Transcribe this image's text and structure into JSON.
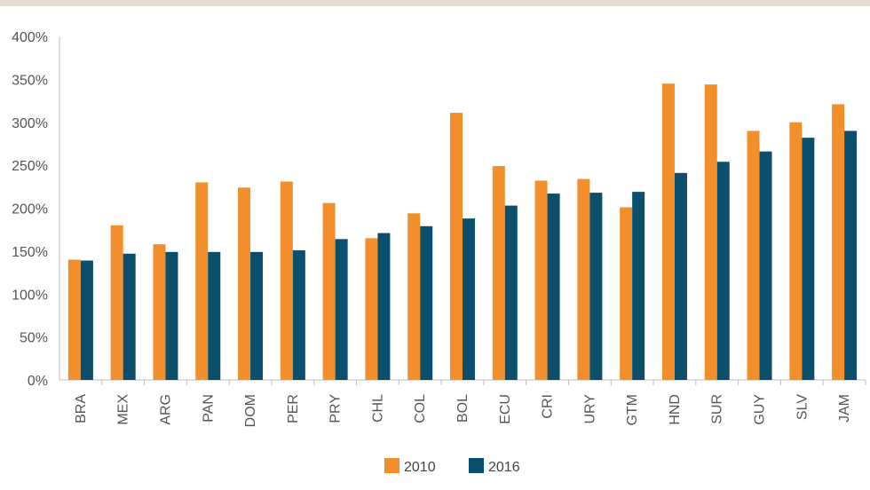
{
  "colors": {
    "series_2010": "#f28e2b",
    "series_2016": "#0b4f6c",
    "axis": "#bfbfbf",
    "text": "#555555"
  },
  "chart_data": {
    "type": "bar",
    "title": "",
    "xlabel": "",
    "ylabel": "",
    "ylim": [
      0,
      400
    ],
    "yticks": [
      "0%",
      "50%",
      "100%",
      "150%",
      "200%",
      "250%",
      "300%",
      "350%",
      "400%"
    ],
    "grid": false,
    "legend": "bottom-center",
    "categories": [
      "BRA",
      "MEX",
      "ARG",
      "PAN",
      "DOM",
      "PER",
      "PRY",
      "CHL",
      "COL",
      "BOL",
      "ECU",
      "CRI",
      "URY",
      "GTM",
      "HND",
      "SUR",
      "GUY",
      "SLV",
      "JAM"
    ],
    "series": [
      {
        "name": "2010",
        "values": [
          140,
          180,
          158,
          230,
          224,
          231,
          206,
          165,
          194,
          311,
          249,
          232,
          234,
          201,
          345,
          344,
          290,
          300,
          321
        ]
      },
      {
        "name": "2016",
        "values": [
          139,
          147,
          149,
          149,
          149,
          151,
          164,
          171,
          179,
          188,
          203,
          217,
          218,
          219,
          241,
          254,
          266,
          282,
          290
        ]
      }
    ]
  }
}
